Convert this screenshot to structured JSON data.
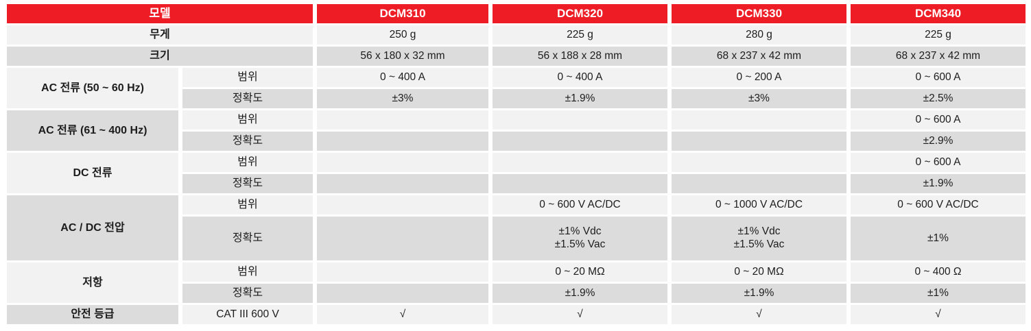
{
  "theme": {
    "header_bg": "#ee1c25",
    "header_text": "#ffffff",
    "row_light_bg": "#f2f2f2",
    "row_dark_bg": "#dcdcdc",
    "text_color": "#1c1c1c"
  },
  "table": {
    "header": {
      "label": "모델",
      "models": [
        "DCM310",
        "DCM320",
        "DCM330",
        "DCM340"
      ]
    },
    "weight": {
      "label": "무게",
      "values": [
        "250 g",
        "225 g",
        "280 g",
        "225 g"
      ]
    },
    "size": {
      "label": "크기",
      "values": [
        "56 x 180 x 32 mm",
        "56 x 188 x 28 mm",
        "68 x 237 x 42 mm",
        "68 x 237 x 42 mm"
      ]
    },
    "row_labels": {
      "range": "범위",
      "accuracy": "정확도"
    },
    "groups": [
      {
        "label": "AC 전류 (50 ~ 60 Hz)",
        "range_values": [
          "0 ~ 400 A",
          "0 ~ 400 A",
          "0 ~ 200 A",
          "0 ~  600 A"
        ],
        "accuracy_values": [
          "±3%",
          "±1.9%",
          "±3%",
          "±2.5%"
        ]
      },
      {
        "label": "AC 전류 (61 ~ 400 Hz)",
        "range_values": [
          "",
          "",
          "",
          "0 ~ 600 A"
        ],
        "accuracy_values": [
          "",
          "",
          "",
          "±2.9%"
        ]
      },
      {
        "label": "DC 전류",
        "range_values": [
          "",
          "",
          "",
          "0 ~ 600 A"
        ],
        "accuracy_values": [
          "",
          "",
          "",
          "±1.9%"
        ]
      },
      {
        "label": "AC / DC 전압",
        "range_values": [
          "",
          "0 ~ 600 V AC/DC",
          "0 ~ 1000 V AC/DC",
          "0 ~ 600 V AC/DC"
        ],
        "accuracy_values": [
          "",
          "±1% Vdc\n±1.5% Vac",
          "±1% Vdc\n±1.5% Vac",
          "±1%"
        ]
      },
      {
        "label": "저항",
        "range_values": [
          "",
          "0 ~ 20 MΩ",
          "0 ~ 20 MΩ",
          "0 ~ 400 Ω"
        ],
        "accuracy_values": [
          "",
          "±1.9%",
          "±1.9%",
          "±1%"
        ]
      }
    ],
    "safety": {
      "label": "안전 등급",
      "rating": "CAT III 600 V",
      "values": [
        "√",
        "√",
        "√",
        "√"
      ]
    }
  }
}
